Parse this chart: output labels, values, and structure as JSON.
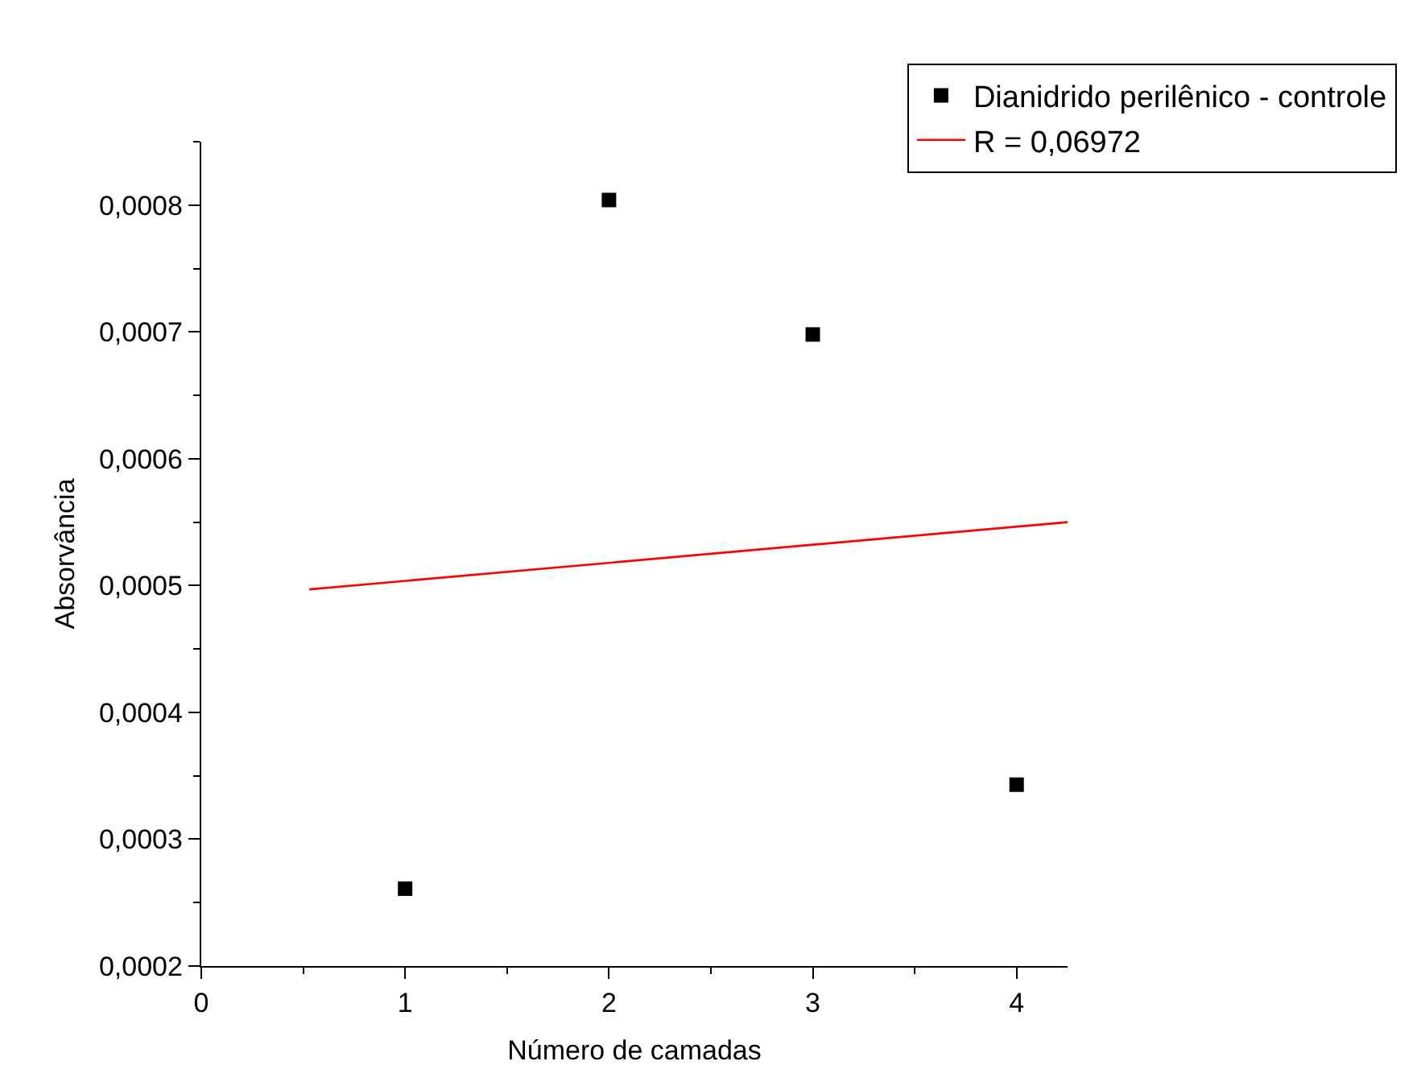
{
  "chart_data": {
    "type": "scatter",
    "xlabel": "Número de camadas",
    "ylabel": "Absorvância",
    "series": [
      {
        "name": "Dianidrido perilênico - controle",
        "color": "#000000",
        "marker": "square",
        "x": [
          1,
          2,
          3,
          4
        ],
        "values": [
          0.000261,
          0.000804,
          0.000698,
          0.000343
        ]
      },
      {
        "name": "R = 0,06972",
        "type": "line",
        "color": "#ff0000",
        "marker": "none",
        "x": [
          0.53,
          4.25
        ],
        "values": [
          0.000497,
          0.00055
        ]
      }
    ],
    "xlim": [
      0,
      4.25
    ],
    "xticks": [
      0,
      1,
      2,
      3,
      4
    ],
    "ylim": [
      0.0002,
      0.00085
    ],
    "yticks": [
      {
        "value": 0.0002,
        "label": "0,0002"
      },
      {
        "value": 0.0003,
        "label": "0,0003"
      },
      {
        "value": 0.0004,
        "label": "0,0004"
      },
      {
        "value": 0.0005,
        "label": "0,0005"
      },
      {
        "value": 0.0006,
        "label": "0,0006"
      },
      {
        "value": 0.0007,
        "label": "0,0007"
      },
      {
        "value": 0.0008,
        "label": "0,0008"
      }
    ],
    "grid": false,
    "legend": "top right"
  }
}
